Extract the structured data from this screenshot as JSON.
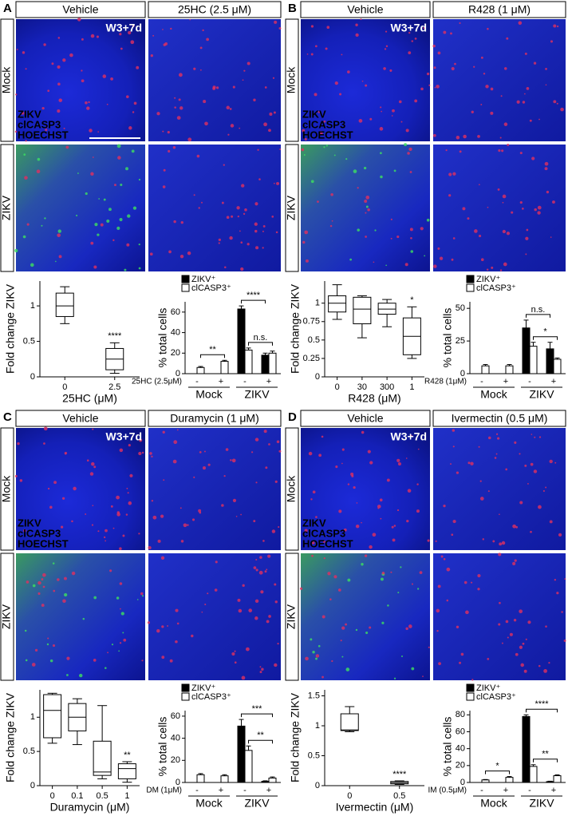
{
  "panels": [
    {
      "letter": "A",
      "columns": [
        "Vehicle",
        "25HC (2.5 μM)"
      ],
      "rows": [
        "Mock",
        "ZIKV"
      ],
      "timepoint": "W3+7d",
      "stains": [
        "ZIKV",
        "clCASP3",
        "HOECHST"
      ]
    },
    {
      "letter": "B",
      "columns": [
        "Vehicle",
        "R428 (1 μM)"
      ],
      "rows": [
        "Mock",
        "ZIKV"
      ],
      "timepoint": "W3+7d",
      "stains": [
        "ZIKV",
        "clCASP3",
        "HOECHST"
      ]
    },
    {
      "letter": "C",
      "columns": [
        "Vehicle",
        "Duramycin (1 μM)"
      ],
      "rows": [
        "Mock",
        "ZIKV"
      ],
      "timepoint": "W3+7d",
      "stains": [
        "ZIKV",
        "clCASP3",
        "HOECHST"
      ]
    },
    {
      "letter": "D",
      "columns": [
        "Vehicle",
        "Ivermectin (0.5 μM)"
      ],
      "rows": [
        "Mock",
        "ZIKV"
      ],
      "timepoint": "W3+7d",
      "stains": [
        "ZIKV",
        "clCASP3",
        "HOECHST"
      ]
    }
  ],
  "chart_data": [
    {
      "type": "box",
      "ylabel": "Fold change ZIKV",
      "xlabel": "25HC (μM)",
      "categories": [
        "0",
        "2.5"
      ],
      "boxes": [
        {
          "min": 0.75,
          "q1": 0.85,
          "median": 1.0,
          "q3": 1.18,
          "max": 1.27
        },
        {
          "min": 0.05,
          "q1": 0.1,
          "median": 0.25,
          "q3": 0.4,
          "max": 0.48
        }
      ],
      "ylim": [
        0,
        1.35
      ],
      "yticks": [
        0,
        0.5,
        1
      ],
      "annotations": [
        {
          "text": "****",
          "category": "2.5"
        }
      ]
    },
    {
      "type": "bar",
      "ylabel": "% total cells",
      "treatment": "25HC (2.5μM)",
      "categories": [
        "-",
        "+",
        "-",
        "+"
      ],
      "groups": [
        "Mock",
        "ZIKV"
      ],
      "series": [
        {
          "name": "ZIKV⁺",
          "color": "#000000",
          "values": [
            0,
            0,
            63,
            18
          ],
          "errors": [
            0,
            0,
            3,
            2
          ]
        },
        {
          "name": "clCASP3⁺",
          "color": "#ffffff",
          "values": [
            6,
            12,
            23,
            20
          ],
          "errors": [
            1,
            1,
            2,
            2
          ]
        }
      ],
      "ylim": [
        0,
        70
      ],
      "yticks": [
        0,
        20,
        40,
        60
      ],
      "brackets": [
        {
          "text": "**",
          "bars": [
            [
              1,
              0
            ],
            [
              1,
              1
            ]
          ]
        },
        {
          "text": "****",
          "bars": [
            [
              0,
              2
            ],
            [
              0,
              3
            ]
          ]
        },
        {
          "text": "n.s.",
          "bars": [
            [
              1,
              2
            ],
            [
              1,
              3
            ]
          ]
        }
      ]
    },
    {
      "type": "box",
      "ylabel": "Fold change ZIKV",
      "xlabel": "R428 (μM)",
      "categories": [
        "0",
        "30",
        "300",
        "1"
      ],
      "boxes": [
        {
          "min": 0.78,
          "q1": 0.88,
          "median": 1.0,
          "q3": 1.1,
          "max": 1.25
        },
        {
          "min": 0.53,
          "q1": 0.72,
          "median": 0.92,
          "q3": 1.08,
          "max": 1.1
        },
        {
          "min": 0.68,
          "q1": 0.85,
          "median": 0.92,
          "q3": 1.0,
          "max": 1.05
        },
        {
          "min": 0.25,
          "q1": 0.3,
          "median": 0.55,
          "q3": 0.8,
          "max": 0.95
        }
      ],
      "ylim": [
        0,
        1.3
      ],
      "yticks": [
        0,
        0.25,
        0.5,
        0.75,
        1
      ],
      "annotations": [
        {
          "text": "*",
          "category": "1"
        }
      ]
    },
    {
      "type": "bar",
      "ylabel": "% total cells",
      "treatment": "R428 (1μM)",
      "categories": [
        "-",
        "+",
        "-",
        "+"
      ],
      "groups": [
        "Mock",
        "ZIKV"
      ],
      "series": [
        {
          "name": "ZIKV⁺",
          "color": "#000000",
          "values": [
            0,
            0,
            35,
            19
          ],
          "errors": [
            0,
            0,
            6,
            5
          ]
        },
        {
          "name": "clCASP3⁺",
          "color": "#ffffff",
          "values": [
            6,
            6,
            21,
            11
          ],
          "errors": [
            1,
            1,
            3,
            1
          ]
        }
      ],
      "ylim": [
        0,
        55
      ],
      "yticks": [
        0,
        25,
        50
      ],
      "brackets": [
        {
          "text": "n.s.",
          "bars": [
            [
              0,
              2
            ],
            [
              0,
              3
            ]
          ]
        },
        {
          "text": "*",
          "bars": [
            [
              1,
              2
            ],
            [
              1,
              3
            ]
          ]
        }
      ]
    },
    {
      "type": "box",
      "ylabel": "Fold change ZIKV",
      "xlabel": "Duramycin (μM)",
      "categories": [
        "0",
        "0.1",
        "0.5",
        "1"
      ],
      "boxes": [
        {
          "min": 0.62,
          "q1": 0.7,
          "median": 1.1,
          "q3": 1.33,
          "max": 1.35
        },
        {
          "min": 0.6,
          "q1": 0.8,
          "median": 1.0,
          "q3": 1.2,
          "max": 1.27
        },
        {
          "min": 0.1,
          "q1": 0.15,
          "median": 0.2,
          "q3": 0.65,
          "max": 1.17
        },
        {
          "min": 0.05,
          "q1": 0.1,
          "median": 0.25,
          "q3": 0.32,
          "max": 0.35
        }
      ],
      "ylim": [
        0,
        1.4
      ],
      "yticks": [
        0,
        0.5,
        1
      ],
      "annotations": [
        {
          "text": "**",
          "category": "1"
        }
      ]
    },
    {
      "type": "bar",
      "ylabel": "% total cells",
      "treatment": "DM (1μM)",
      "categories": [
        "-",
        "+",
        "-",
        "+"
      ],
      "groups": [
        "Mock",
        "ZIKV"
      ],
      "series": [
        {
          "name": "ZIKV⁺",
          "color": "#000000",
          "values": [
            0,
            0,
            51,
            1
          ],
          "errors": [
            0,
            0,
            6,
            0.5
          ]
        },
        {
          "name": "clCASP3⁺",
          "color": "#ffffff",
          "values": [
            7,
            6,
            29,
            4
          ],
          "errors": [
            1,
            1,
            4,
            1
          ]
        }
      ],
      "ylim": [
        0,
        65
      ],
      "yticks": [
        0,
        20,
        40,
        60
      ],
      "brackets": [
        {
          "text": "***",
          "bars": [
            [
              0,
              2
            ],
            [
              1,
              3
            ]
          ]
        },
        {
          "text": "**",
          "bars": [
            [
              1,
              2
            ],
            [
              1,
              3
            ]
          ]
        }
      ]
    },
    {
      "type": "box",
      "ylabel": "Fold change ZIKV",
      "xlabel": "Ivermectin (μM)",
      "categories": [
        "0",
        "0.5"
      ],
      "boxes": [
        {
          "min": 0.9,
          "q1": 0.92,
          "median": 0.93,
          "q3": 1.2,
          "max": 1.32
        },
        {
          "min": 0.02,
          "q1": 0.03,
          "median": 0.05,
          "q3": 0.07,
          "max": 0.08
        }
      ],
      "ylim": [
        0,
        1.6
      ],
      "yticks": [
        0,
        0.5,
        1,
        1.5
      ],
      "annotations": [
        {
          "text": "****",
          "category": "0.5"
        }
      ]
    },
    {
      "type": "bar",
      "ylabel": "% total cells",
      "treatment": "IM (0.5μM)",
      "categories": [
        "-",
        "+",
        "-",
        "+"
      ],
      "groups": [
        "Mock",
        "ZIKV"
      ],
      "series": [
        {
          "name": "ZIKV⁺",
          "color": "#000000",
          "values": [
            0,
            0,
            78,
            1
          ],
          "errors": [
            0,
            0,
            2,
            0.5
          ]
        },
        {
          "name": "clCASP3⁺",
          "color": "#ffffff",
          "values": [
            3,
            6,
            19,
            8
          ],
          "errors": [
            0.5,
            1,
            2,
            1
          ]
        }
      ],
      "ylim": [
        0,
        85
      ],
      "yticks": [
        0,
        20,
        40,
        60,
        80
      ],
      "brackets": [
        {
          "text": "*",
          "bars": [
            [
              1,
              0
            ],
            [
              1,
              1
            ]
          ]
        },
        {
          "text": "****",
          "bars": [
            [
              0,
              2
            ],
            [
              1,
              3
            ]
          ]
        },
        {
          "text": "**",
          "bars": [
            [
              1,
              2
            ],
            [
              1,
              3
            ]
          ]
        }
      ]
    }
  ]
}
